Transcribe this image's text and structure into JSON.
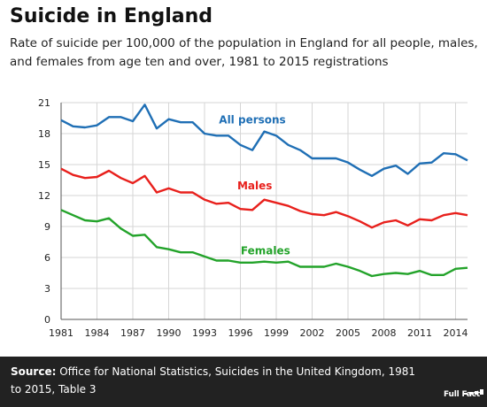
{
  "header": {
    "title": "Suicide in England",
    "subtitle": "Rate of suicide per 100,000 of the population in England for all people, males, and females from age ten and over, 1981 to 2015 registrations"
  },
  "footer": {
    "source_label": "Source:",
    "source_text": "Office for National Statistics, Suicides in the United Kingdom, 1981 to 2015, Table 3",
    "logo_text": "Full Fact"
  },
  "chart_data": {
    "type": "line",
    "title": "Suicide in England",
    "xlabel": "",
    "ylabel": "",
    "x": [
      1981,
      1982,
      1983,
      1984,
      1985,
      1986,
      1987,
      1988,
      1989,
      1990,
      1991,
      1992,
      1993,
      1994,
      1995,
      1996,
      1997,
      1998,
      1999,
      2000,
      2001,
      2002,
      2003,
      2004,
      2005,
      2006,
      2007,
      2008,
      2009,
      2010,
      2011,
      2012,
      2013,
      2014,
      2015
    ],
    "xticks": [
      1981,
      1984,
      1987,
      1990,
      1993,
      1996,
      1999,
      2002,
      2005,
      2008,
      2011,
      2014
    ],
    "xlim": [
      1981,
      2015
    ],
    "ylim": [
      0,
      21
    ],
    "yticks": [
      0,
      3,
      6,
      9,
      12,
      15,
      18,
      21
    ],
    "grid": true,
    "legend": "inline labels",
    "series": [
      {
        "name": "All persons",
        "color": "#1f6fb5",
        "values": [
          19.3,
          18.7,
          18.6,
          18.8,
          19.6,
          19.6,
          19.2,
          20.8,
          18.5,
          19.4,
          19.1,
          19.1,
          18.0,
          17.8,
          17.8,
          16.9,
          16.4,
          18.2,
          17.8,
          16.9,
          16.4,
          15.6,
          15.6,
          15.6,
          15.2,
          14.5,
          13.9,
          14.6,
          14.9,
          14.1,
          15.1,
          15.2,
          16.1,
          16.0,
          15.4
        ]
      },
      {
        "name": "Males",
        "color": "#e8201c",
        "values": [
          14.6,
          14.0,
          13.7,
          13.8,
          14.4,
          13.7,
          13.2,
          13.9,
          12.3,
          12.7,
          12.3,
          12.3,
          11.6,
          11.2,
          11.3,
          10.7,
          10.6,
          11.6,
          11.3,
          11.0,
          10.5,
          10.2,
          10.1,
          10.4,
          10.0,
          9.5,
          8.9,
          9.4,
          9.6,
          9.1,
          9.7,
          9.6,
          10.1,
          10.3,
          10.1
        ]
      },
      {
        "name": "Females",
        "color": "#23a32a",
        "values": [
          10.6,
          10.1,
          9.6,
          9.5,
          9.8,
          8.8,
          8.1,
          8.2,
          7.0,
          6.8,
          6.5,
          6.5,
          6.1,
          5.7,
          5.7,
          5.5,
          5.5,
          5.6,
          5.5,
          5.6,
          5.1,
          5.1,
          5.1,
          5.4,
          5.1,
          4.7,
          4.2,
          4.4,
          4.5,
          4.4,
          4.7,
          4.3,
          4.3,
          4.9,
          5.0
        ]
      }
    ]
  }
}
